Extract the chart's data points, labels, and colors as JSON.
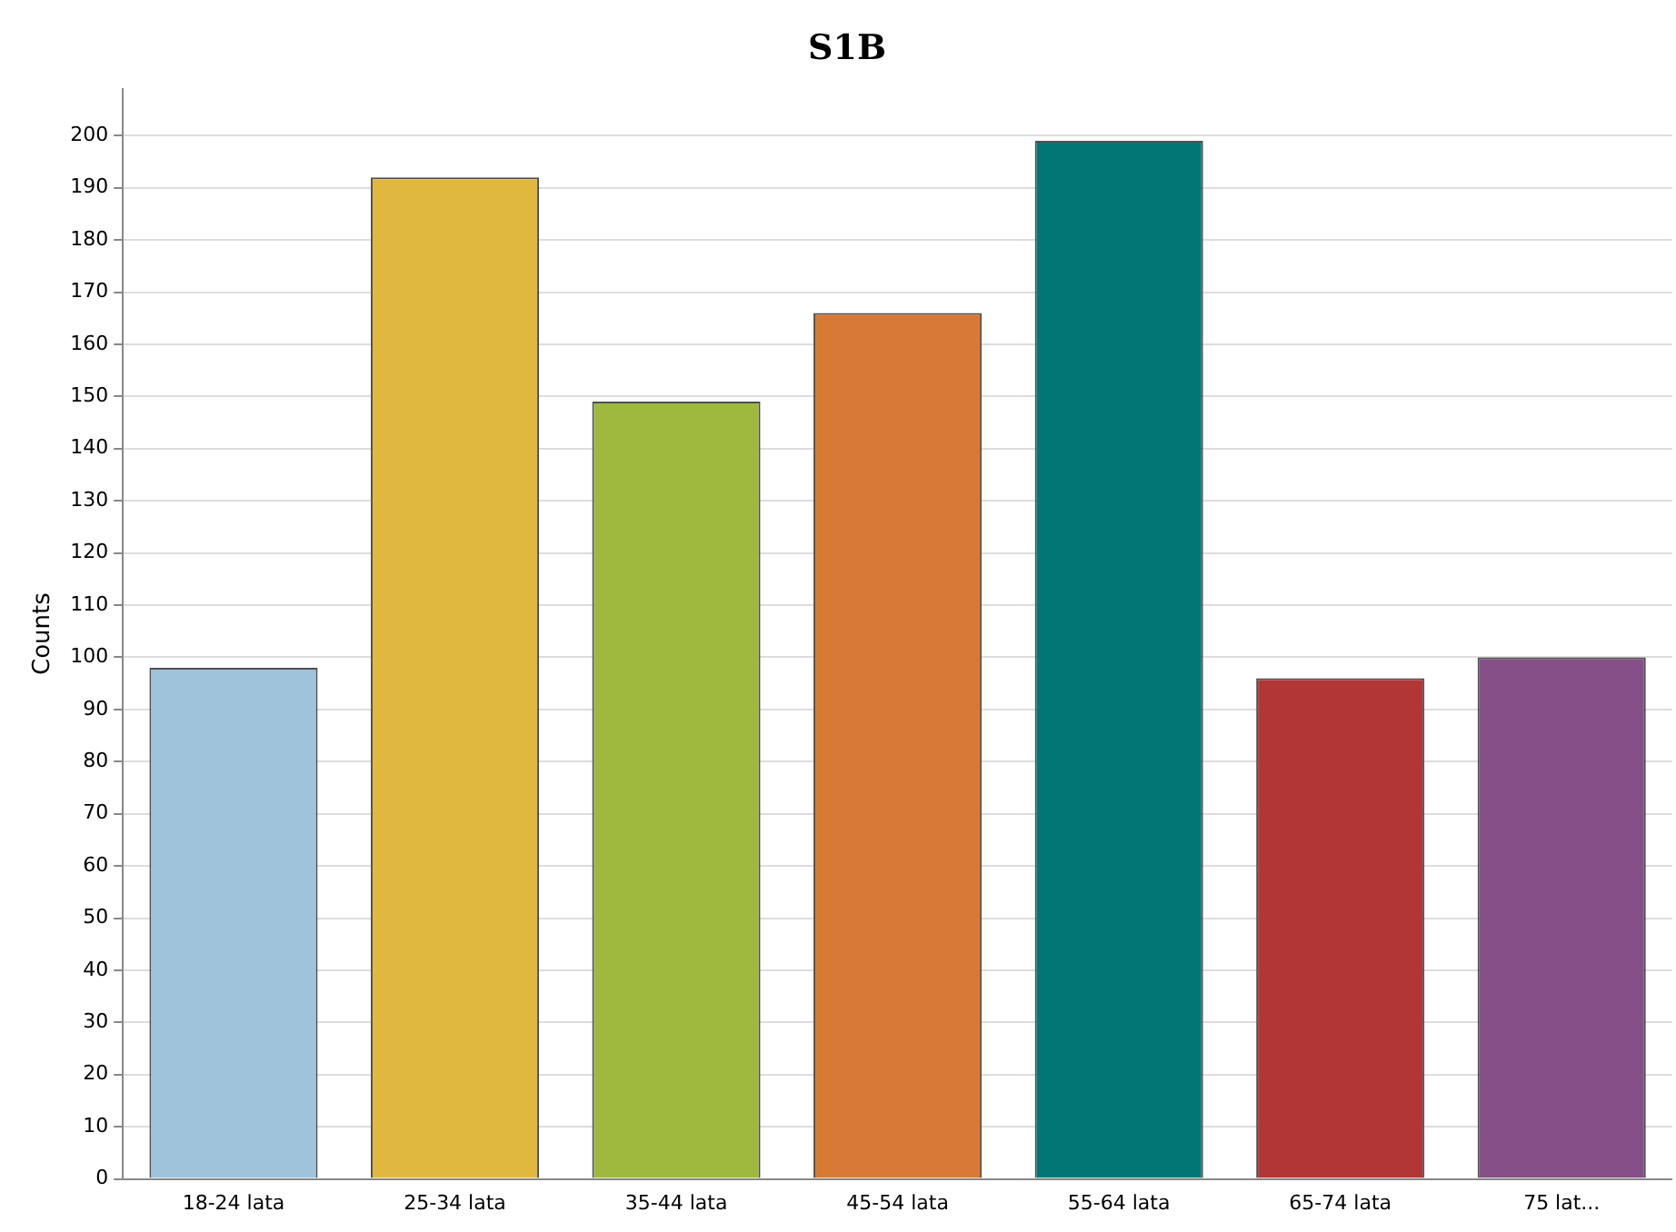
{
  "chart_data": {
    "type": "bar",
    "title": "S1B",
    "ylabel": "Counts",
    "categories": [
      "18-24 lata",
      "25-34 lata",
      "35-44 lata",
      "45-54 lata",
      "55-64 lata",
      "65-74 lata",
      "75 lat..."
    ],
    "values": [
      98,
      192,
      149,
      166,
      199,
      96,
      100
    ],
    "colors": [
      "#a0c3dc",
      "#e0b840",
      "#9eb93e",
      "#d87935",
      "#007774",
      "#b33636",
      "#855087"
    ],
    "ylim": [
      0,
      209
    ],
    "yticks": [
      0,
      10,
      20,
      30,
      40,
      50,
      60,
      70,
      80,
      90,
      100,
      110,
      120,
      130,
      140,
      150,
      160,
      170,
      180,
      190,
      200
    ],
    "grid": "y",
    "legend": false
  }
}
